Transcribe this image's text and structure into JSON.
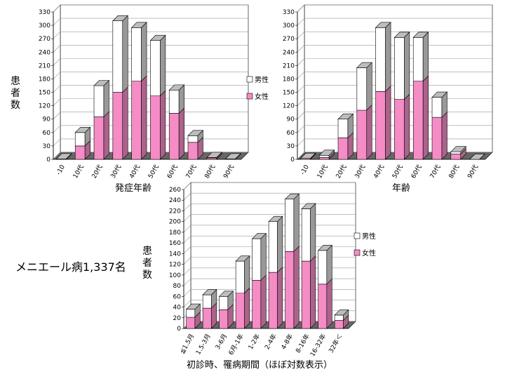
{
  "caption": "メニエール病1,337名",
  "ylabel": "患者数",
  "legend": {
    "male": "男性",
    "female": "女性"
  },
  "colors": {
    "male": "#ffffff",
    "female": "#f58cc6",
    "side": "#999999",
    "top_male": "#bdbdbd",
    "grid": "#999999"
  },
  "chart_data": [
    {
      "type": "bar",
      "stacked": true,
      "xlabel": "発症年齢",
      "ylabel": "患者数",
      "ylim": [
        0,
        330
      ],
      "yticks": [
        0,
        30,
        60,
        90,
        120,
        150,
        180,
        210,
        240,
        270,
        300,
        330
      ],
      "categories": [
        "-10",
        "10代",
        "20代",
        "30代",
        "40代",
        "50代",
        "60代",
        "70代",
        "80代",
        "90代"
      ],
      "series": [
        {
          "name": "女性",
          "values": [
            0,
            30,
            95,
            150,
            175,
            142,
            103,
            38,
            3,
            1
          ]
        },
        {
          "name": "男性",
          "values": [
            1,
            30,
            70,
            160,
            120,
            124,
            52,
            15,
            1,
            0
          ]
        }
      ],
      "legend_position": "right"
    },
    {
      "type": "bar",
      "stacked": true,
      "xlabel": "年齢",
      "ylabel": "患者数",
      "ylim": [
        0,
        330
      ],
      "yticks": [
        0,
        30,
        60,
        90,
        120,
        150,
        180,
        210,
        240,
        270,
        300,
        330
      ],
      "categories": [
        "-10",
        "10代",
        "20代",
        "30代",
        "40代",
        "50代",
        "60代",
        "70代",
        "80代",
        "90代"
      ],
      "series": [
        {
          "name": "女性",
          "values": [
            2,
            4,
            48,
            110,
            152,
            134,
            175,
            94,
            12,
            0
          ]
        },
        {
          "name": "男性",
          "values": [
            0,
            5,
            42,
            95,
            143,
            139,
            98,
            45,
            5,
            0
          ]
        }
      ]
    },
    {
      "type": "bar",
      "stacked": true,
      "xlabel": "初診時、罹病期間（ほぼ対数表示）",
      "ylabel": "患者数",
      "ylim": [
        0,
        260
      ],
      "yticks": [
        0,
        20,
        40,
        60,
        80,
        100,
        120,
        140,
        160,
        180,
        200,
        220,
        240,
        260
      ],
      "categories": [
        "≦1.5月",
        "1.5-3月",
        "3-6月",
        "6月-1年",
        "1-2年",
        "2-4年",
        "4-8年",
        "8-16年",
        "16-32年",
        "32年＜"
      ],
      "series": [
        {
          "name": "女性",
          "values": [
            21,
            38,
            35,
            66,
            90,
            105,
            144,
            126,
            83,
            15
          ]
        },
        {
          "name": "男性",
          "values": [
            15,
            25,
            25,
            60,
            78,
            95,
            98,
            98,
            63,
            10
          ]
        }
      ],
      "legend_position": "right"
    }
  ]
}
